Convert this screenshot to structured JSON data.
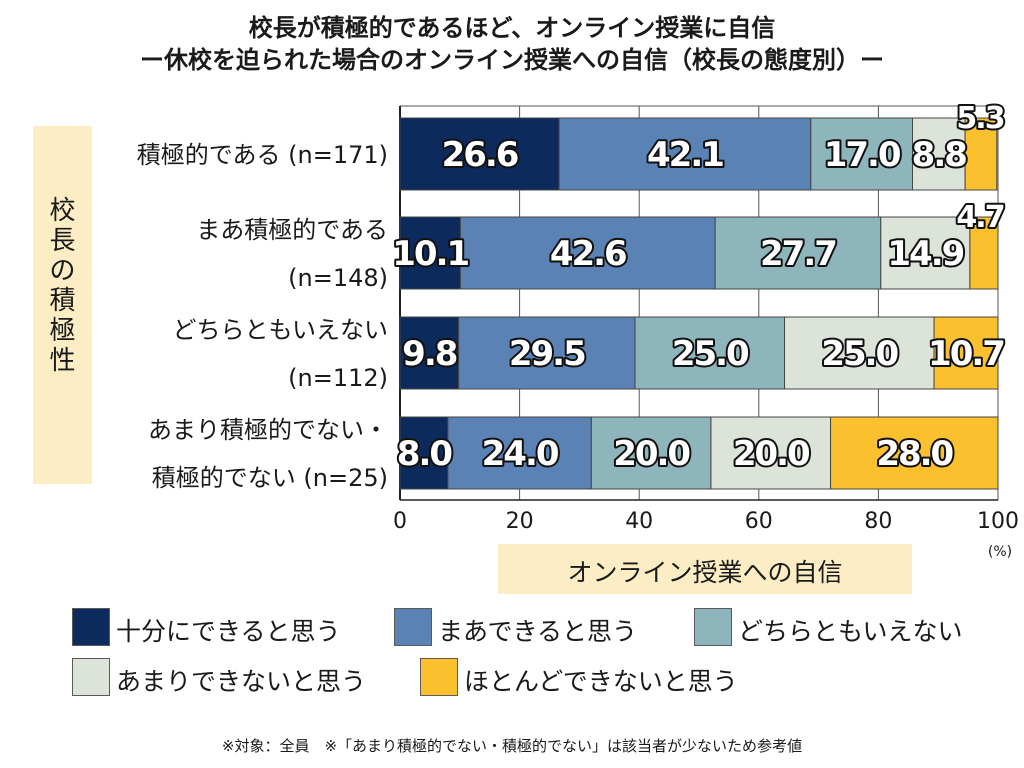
{
  "title": {
    "line1": "校長が積極的であるほど、オンライン授業に自信",
    "line2": "ー休校を迫られた場合のオンライン授業への自信（校長の態度別）ー"
  },
  "y_axis_group_label": "校長の積極性",
  "x_axis_label": "オンライン授業への自信",
  "x_unit": "(%)",
  "footnote": "※対象：全員　※「あまり積極的でない・積極的でない」は該当者が少ないため参考値",
  "colors": {
    "series": [
      "#0d2a5c",
      "#5b82b5",
      "#8fb5bc",
      "#dce3d8",
      "#fbc02d"
    ],
    "label_box": "#fcedc4"
  },
  "chart_data": {
    "type": "bar",
    "orientation": "horizontal",
    "stacked": true,
    "categories": [
      [
        "積極的である (n=171)"
      ],
      [
        "まあ積極的である",
        "(n=148)"
      ],
      [
        "どちらともいえない",
        "(n=112)"
      ],
      [
        "あまり積極的でない・",
        "積極的でない (n=25)"
      ]
    ],
    "series": [
      {
        "name": "十分にできると思う",
        "values": [
          26.6,
          10.1,
          9.8,
          8.0
        ]
      },
      {
        "name": "まあできると思う",
        "values": [
          42.1,
          42.6,
          29.5,
          24.0
        ]
      },
      {
        "name": "どちらともいえない",
        "values": [
          17.0,
          27.7,
          25.0,
          20.0
        ]
      },
      {
        "name": "あまりできないと思う",
        "values": [
          8.8,
          14.9,
          25.0,
          20.0
        ]
      },
      {
        "name": "ほとんどできないと思う",
        "values": [
          5.3,
          4.7,
          10.7,
          28.0
        ]
      }
    ],
    "xlim": [
      0,
      100
    ],
    "xticks": [
      0,
      20,
      40,
      60,
      80,
      100
    ],
    "grid": true,
    "legend_position": "bottom"
  }
}
